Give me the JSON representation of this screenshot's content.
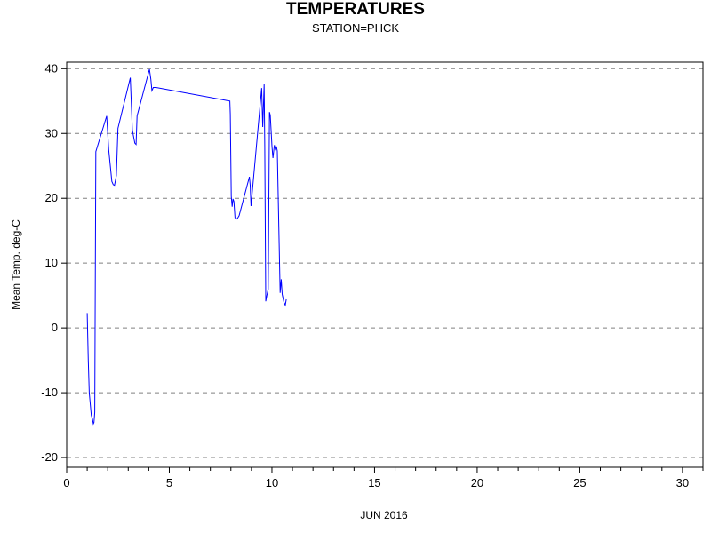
{
  "chart_data": {
    "type": "line",
    "title": "TEMPERATURES",
    "subtitle": "STATION=PHCK",
    "xlabel": "JUN 2016",
    "ylabel": "Mean Temp. deg-C",
    "xlim": [
      0,
      31
    ],
    "ylim": [
      -21.5,
      41
    ],
    "x_ticks": [
      0,
      5,
      10,
      15,
      20,
      25,
      30
    ],
    "y_ticks": [
      -20,
      -10,
      0,
      10,
      20,
      30,
      40
    ],
    "grid": "horizontal dashed",
    "series": [
      {
        "color": "#0000ff",
        "x": [
          1.0,
          1.05,
          1.1,
          1.2,
          1.25,
          1.3,
          1.33,
          1.37,
          1.42,
          1.95,
          2.05,
          2.2,
          2.27,
          2.33,
          2.42,
          2.5,
          3.1,
          3.2,
          3.32,
          3.38,
          3.43,
          4.03,
          4.1,
          4.15,
          4.22,
          4.35,
          7.95,
          7.97,
          8.02,
          8.06,
          8.1,
          8.15,
          8.2,
          8.3,
          8.4,
          8.9,
          8.94,
          8.98,
          9.5,
          9.55,
          9.62,
          9.65,
          9.7,
          9.75,
          9.82,
          9.88,
          9.92,
          10.0,
          10.05,
          10.12,
          10.18,
          10.22,
          10.26,
          10.4,
          10.45,
          10.5,
          10.58,
          10.65,
          10.7
        ],
        "y": [
          2.3,
          -5,
          -10,
          -13.5,
          -14,
          -14.8,
          -14.6,
          -13,
          27.2,
          32.7,
          27.5,
          22.6,
          22.1,
          22.0,
          23.5,
          30.8,
          38.6,
          30.5,
          28.5,
          28.3,
          32.7,
          39.9,
          38.4,
          36.6,
          37.1,
          37.1,
          35.0,
          33,
          20.3,
          18.7,
          19.9,
          19.5,
          17.0,
          16.8,
          17.3,
          23.3,
          22,
          18.8,
          37.0,
          31.0,
          37.6,
          28,
          4.1,
          5,
          6,
          33.3,
          32.8,
          28,
          26.2,
          28.2,
          27.4,
          28.0,
          27.3,
          5.4,
          7.5,
          5.2,
          4.0,
          3.5,
          4.4
        ]
      }
    ]
  }
}
